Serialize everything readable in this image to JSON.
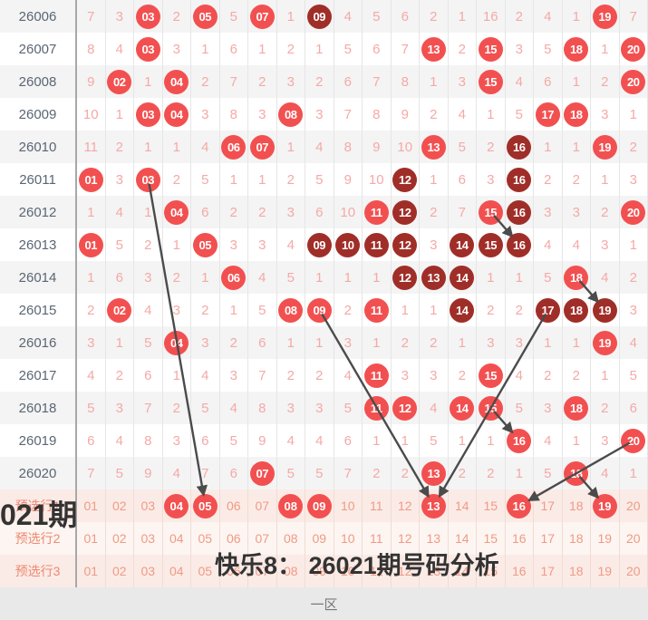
{
  "overlay": {
    "period_label": "021期",
    "analysis_title": "快乐8： 26021期号码分析"
  },
  "zone_label": "一区",
  "colors": {
    "drawn_circle": "#f25050",
    "dark_circle": "#a02e28",
    "miss_text": "#f5a9a7",
    "period_text": "#5a6674",
    "selector_text": "#f09a85",
    "selector_label_text": "#ee8871",
    "selector_bg": "#fbebe6",
    "selector_alt_bg": "#fdf5f1",
    "alt_row_bg": "#f4f4f4",
    "trend_line": "#4b4b4b",
    "overlay_text": "#333333",
    "zone_band_bg": "#e9e9e9",
    "zone_text": "#777777"
  },
  "rows": [
    {
      "period": "26006",
      "cells": [
        [
          "7",
          "m"
        ],
        [
          "3",
          "m"
        ],
        [
          "03",
          "r"
        ],
        [
          "2",
          "m"
        ],
        [
          "05",
          "r"
        ],
        [
          "5",
          "m"
        ],
        [
          "07",
          "r"
        ],
        [
          "1",
          "m"
        ],
        [
          "09",
          "d"
        ],
        [
          "4",
          "m"
        ],
        [
          "5",
          "m"
        ],
        [
          "6",
          "m"
        ],
        [
          "2",
          "m"
        ],
        [
          "1",
          "m"
        ],
        [
          "16",
          "m"
        ],
        [
          "2",
          "m"
        ],
        [
          "4",
          "m"
        ],
        [
          "1",
          "m"
        ],
        [
          "19",
          "r"
        ],
        [
          "7",
          "m"
        ]
      ]
    },
    {
      "period": "26007",
      "cells": [
        [
          "8",
          "m"
        ],
        [
          "4",
          "m"
        ],
        [
          "03",
          "r"
        ],
        [
          "3",
          "m"
        ],
        [
          "1",
          "m"
        ],
        [
          "6",
          "m"
        ],
        [
          "1",
          "m"
        ],
        [
          "2",
          "m"
        ],
        [
          "1",
          "m"
        ],
        [
          "5",
          "m"
        ],
        [
          "6",
          "m"
        ],
        [
          "7",
          "m"
        ],
        [
          "13",
          "r"
        ],
        [
          "2",
          "m"
        ],
        [
          "15",
          "r"
        ],
        [
          "3",
          "m"
        ],
        [
          "5",
          "m"
        ],
        [
          "18",
          "r"
        ],
        [
          "1",
          "m"
        ],
        [
          "20",
          "r"
        ]
      ]
    },
    {
      "period": "26008",
      "cells": [
        [
          "9",
          "m"
        ],
        [
          "02",
          "r"
        ],
        [
          "1",
          "m"
        ],
        [
          "04",
          "r"
        ],
        [
          "2",
          "m"
        ],
        [
          "7",
          "m"
        ],
        [
          "2",
          "m"
        ],
        [
          "3",
          "m"
        ],
        [
          "2",
          "m"
        ],
        [
          "6",
          "m"
        ],
        [
          "7",
          "m"
        ],
        [
          "8",
          "m"
        ],
        [
          "1",
          "m"
        ],
        [
          "3",
          "m"
        ],
        [
          "15",
          "r"
        ],
        [
          "4",
          "m"
        ],
        [
          "6",
          "m"
        ],
        [
          "1",
          "m"
        ],
        [
          "2",
          "m"
        ],
        [
          "20",
          "r"
        ]
      ]
    },
    {
      "period": "26009",
      "cells": [
        [
          "10",
          "m"
        ],
        [
          "1",
          "m"
        ],
        [
          "03",
          "r"
        ],
        [
          "04",
          "r"
        ],
        [
          "3",
          "m"
        ],
        [
          "8",
          "m"
        ],
        [
          "3",
          "m"
        ],
        [
          "08",
          "r"
        ],
        [
          "3",
          "m"
        ],
        [
          "7",
          "m"
        ],
        [
          "8",
          "m"
        ],
        [
          "9",
          "m"
        ],
        [
          "2",
          "m"
        ],
        [
          "4",
          "m"
        ],
        [
          "1",
          "m"
        ],
        [
          "5",
          "m"
        ],
        [
          "17",
          "r"
        ],
        [
          "18",
          "r"
        ],
        [
          "3",
          "m"
        ],
        [
          "1",
          "m"
        ]
      ]
    },
    {
      "period": "26010",
      "cells": [
        [
          "11",
          "m"
        ],
        [
          "2",
          "m"
        ],
        [
          "1",
          "m"
        ],
        [
          "1",
          "m"
        ],
        [
          "4",
          "m"
        ],
        [
          "06",
          "r"
        ],
        [
          "07",
          "r"
        ],
        [
          "1",
          "m"
        ],
        [
          "4",
          "m"
        ],
        [
          "8",
          "m"
        ],
        [
          "9",
          "m"
        ],
        [
          "10",
          "m"
        ],
        [
          "13",
          "r"
        ],
        [
          "5",
          "m"
        ],
        [
          "2",
          "m"
        ],
        [
          "16",
          "d"
        ],
        [
          "1",
          "m"
        ],
        [
          "1",
          "m"
        ],
        [
          "19",
          "r"
        ],
        [
          "2",
          "m"
        ]
      ]
    },
    {
      "period": "26011",
      "cells": [
        [
          "01",
          "r"
        ],
        [
          "3",
          "m"
        ],
        [
          "03",
          "r"
        ],
        [
          "2",
          "m"
        ],
        [
          "5",
          "m"
        ],
        [
          "1",
          "m"
        ],
        [
          "1",
          "m"
        ],
        [
          "2",
          "m"
        ],
        [
          "5",
          "m"
        ],
        [
          "9",
          "m"
        ],
        [
          "10",
          "m"
        ],
        [
          "12",
          "d"
        ],
        [
          "1",
          "m"
        ],
        [
          "6",
          "m"
        ],
        [
          "3",
          "m"
        ],
        [
          "16",
          "d"
        ],
        [
          "2",
          "m"
        ],
        [
          "2",
          "m"
        ],
        [
          "1",
          "m"
        ],
        [
          "3",
          "m"
        ]
      ]
    },
    {
      "period": "26012",
      "cells": [
        [
          "1",
          "m"
        ],
        [
          "4",
          "m"
        ],
        [
          "1",
          "m"
        ],
        [
          "04",
          "r"
        ],
        [
          "6",
          "m"
        ],
        [
          "2",
          "m"
        ],
        [
          "2",
          "m"
        ],
        [
          "3",
          "m"
        ],
        [
          "6",
          "m"
        ],
        [
          "10",
          "m"
        ],
        [
          "11",
          "r"
        ],
        [
          "12",
          "d"
        ],
        [
          "2",
          "m"
        ],
        [
          "7",
          "m"
        ],
        [
          "15",
          "r"
        ],
        [
          "16",
          "d"
        ],
        [
          "3",
          "m"
        ],
        [
          "3",
          "m"
        ],
        [
          "2",
          "m"
        ],
        [
          "20",
          "r"
        ]
      ]
    },
    {
      "period": "26013",
      "cells": [
        [
          "01",
          "r"
        ],
        [
          "5",
          "m"
        ],
        [
          "2",
          "m"
        ],
        [
          "1",
          "m"
        ],
        [
          "05",
          "r"
        ],
        [
          "3",
          "m"
        ],
        [
          "3",
          "m"
        ],
        [
          "4",
          "m"
        ],
        [
          "09",
          "d"
        ],
        [
          "10",
          "d"
        ],
        [
          "11",
          "d"
        ],
        [
          "12",
          "d"
        ],
        [
          "3",
          "m"
        ],
        [
          "14",
          "d"
        ],
        [
          "15",
          "d"
        ],
        [
          "16",
          "d"
        ],
        [
          "4",
          "m"
        ],
        [
          "4",
          "m"
        ],
        [
          "3",
          "m"
        ],
        [
          "1",
          "m"
        ]
      ]
    },
    {
      "period": "26014",
      "cells": [
        [
          "1",
          "m"
        ],
        [
          "6",
          "m"
        ],
        [
          "3",
          "m"
        ],
        [
          "2",
          "m"
        ],
        [
          "1",
          "m"
        ],
        [
          "06",
          "r"
        ],
        [
          "4",
          "m"
        ],
        [
          "5",
          "m"
        ],
        [
          "1",
          "m"
        ],
        [
          "1",
          "m"
        ],
        [
          "1",
          "m"
        ],
        [
          "12",
          "d"
        ],
        [
          "13",
          "d"
        ],
        [
          "14",
          "d"
        ],
        [
          "1",
          "m"
        ],
        [
          "1",
          "m"
        ],
        [
          "5",
          "m"
        ],
        [
          "18",
          "r"
        ],
        [
          "4",
          "m"
        ],
        [
          "2",
          "m"
        ]
      ]
    },
    {
      "period": "26015",
      "cells": [
        [
          "2",
          "m"
        ],
        [
          "02",
          "r"
        ],
        [
          "4",
          "m"
        ],
        [
          "3",
          "m"
        ],
        [
          "2",
          "m"
        ],
        [
          "1",
          "m"
        ],
        [
          "5",
          "m"
        ],
        [
          "08",
          "r"
        ],
        [
          "09",
          "r"
        ],
        [
          "2",
          "m"
        ],
        [
          "11",
          "r"
        ],
        [
          "1",
          "m"
        ],
        [
          "1",
          "m"
        ],
        [
          "14",
          "d"
        ],
        [
          "2",
          "m"
        ],
        [
          "2",
          "m"
        ],
        [
          "17",
          "d"
        ],
        [
          "18",
          "d"
        ],
        [
          "19",
          "d"
        ],
        [
          "3",
          "m"
        ]
      ]
    },
    {
      "period": "26016",
      "cells": [
        [
          "3",
          "m"
        ],
        [
          "1",
          "m"
        ],
        [
          "5",
          "m"
        ],
        [
          "04",
          "r"
        ],
        [
          "3",
          "m"
        ],
        [
          "2",
          "m"
        ],
        [
          "6",
          "m"
        ],
        [
          "1",
          "m"
        ],
        [
          "1",
          "m"
        ],
        [
          "3",
          "m"
        ],
        [
          "1",
          "m"
        ],
        [
          "2",
          "m"
        ],
        [
          "2",
          "m"
        ],
        [
          "1",
          "m"
        ],
        [
          "3",
          "m"
        ],
        [
          "3",
          "m"
        ],
        [
          "1",
          "m"
        ],
        [
          "1",
          "m"
        ],
        [
          "19",
          "r"
        ],
        [
          "4",
          "m"
        ]
      ]
    },
    {
      "period": "26017",
      "cells": [
        [
          "4",
          "m"
        ],
        [
          "2",
          "m"
        ],
        [
          "6",
          "m"
        ],
        [
          "1",
          "m"
        ],
        [
          "4",
          "m"
        ],
        [
          "3",
          "m"
        ],
        [
          "7",
          "m"
        ],
        [
          "2",
          "m"
        ],
        [
          "2",
          "m"
        ],
        [
          "4",
          "m"
        ],
        [
          "11",
          "r"
        ],
        [
          "3",
          "m"
        ],
        [
          "3",
          "m"
        ],
        [
          "2",
          "m"
        ],
        [
          "15",
          "r"
        ],
        [
          "4",
          "m"
        ],
        [
          "2",
          "m"
        ],
        [
          "2",
          "m"
        ],
        [
          "1",
          "m"
        ],
        [
          "5",
          "m"
        ]
      ]
    },
    {
      "period": "26018",
      "cells": [
        [
          "5",
          "m"
        ],
        [
          "3",
          "m"
        ],
        [
          "7",
          "m"
        ],
        [
          "2",
          "m"
        ],
        [
          "5",
          "m"
        ],
        [
          "4",
          "m"
        ],
        [
          "8",
          "m"
        ],
        [
          "3",
          "m"
        ],
        [
          "3",
          "m"
        ],
        [
          "5",
          "m"
        ],
        [
          "11",
          "r"
        ],
        [
          "12",
          "r"
        ],
        [
          "4",
          "m"
        ],
        [
          "14",
          "r"
        ],
        [
          "15",
          "r"
        ],
        [
          "5",
          "m"
        ],
        [
          "3",
          "m"
        ],
        [
          "18",
          "r"
        ],
        [
          "2",
          "m"
        ],
        [
          "6",
          "m"
        ]
      ]
    },
    {
      "period": "26019",
      "cells": [
        [
          "6",
          "m"
        ],
        [
          "4",
          "m"
        ],
        [
          "8",
          "m"
        ],
        [
          "3",
          "m"
        ],
        [
          "6",
          "m"
        ],
        [
          "5",
          "m"
        ],
        [
          "9",
          "m"
        ],
        [
          "4",
          "m"
        ],
        [
          "4",
          "m"
        ],
        [
          "6",
          "m"
        ],
        [
          "1",
          "m"
        ],
        [
          "1",
          "m"
        ],
        [
          "5",
          "m"
        ],
        [
          "1",
          "m"
        ],
        [
          "1",
          "m"
        ],
        [
          "16",
          "r"
        ],
        [
          "4",
          "m"
        ],
        [
          "1",
          "m"
        ],
        [
          "3",
          "m"
        ],
        [
          "20",
          "r"
        ]
      ]
    },
    {
      "period": "26020",
      "cells": [
        [
          "7",
          "m"
        ],
        [
          "5",
          "m"
        ],
        [
          "9",
          "m"
        ],
        [
          "4",
          "m"
        ],
        [
          "7",
          "m"
        ],
        [
          "6",
          "m"
        ],
        [
          "07",
          "r"
        ],
        [
          "5",
          "m"
        ],
        [
          "5",
          "m"
        ],
        [
          "7",
          "m"
        ],
        [
          "2",
          "m"
        ],
        [
          "2",
          "m"
        ],
        [
          "13",
          "r"
        ],
        [
          "2",
          "m"
        ],
        [
          "2",
          "m"
        ],
        [
          "1",
          "m"
        ],
        [
          "5",
          "m"
        ],
        [
          "18",
          "r"
        ],
        [
          "4",
          "m"
        ],
        [
          "1",
          "m"
        ]
      ]
    }
  ],
  "selector_values": [
    "01",
    "02",
    "03",
    "04",
    "05",
    "06",
    "07",
    "08",
    "09",
    "10",
    "11",
    "12",
    "13",
    "14",
    "15",
    "16",
    "17",
    "18",
    "19",
    "20"
  ],
  "selector_rows": [
    {
      "key": "pre1",
      "label": "预选行1",
      "circled": [
        4,
        5,
        8,
        9,
        13,
        16,
        19
      ]
    },
    {
      "key": "pre2",
      "label": "预选行2",
      "circled": []
    },
    {
      "key": "pre3",
      "label": "预选行3",
      "circled": []
    }
  ],
  "trend_lines": [
    {
      "from": [
        "26011",
        3
      ],
      "to": [
        "pre1",
        5
      ]
    },
    {
      "from": [
        "26015",
        9
      ],
      "to": [
        "pre1",
        13
      ]
    },
    {
      "from": [
        "26012",
        15
      ],
      "to": [
        "26013",
        16
      ]
    },
    {
      "from": [
        "26014",
        18
      ],
      "to": [
        "26015",
        19
      ]
    },
    {
      "from": [
        "26015",
        17
      ],
      "to": [
        "pre1",
        13
      ]
    },
    {
      "from": [
        "26018",
        15
      ],
      "to": [
        "26019",
        16
      ]
    },
    {
      "from": [
        "26019",
        20
      ],
      "to": [
        "pre1",
        16
      ]
    },
    {
      "from": [
        "26020",
        18
      ],
      "to": [
        "pre1",
        19
      ]
    }
  ]
}
